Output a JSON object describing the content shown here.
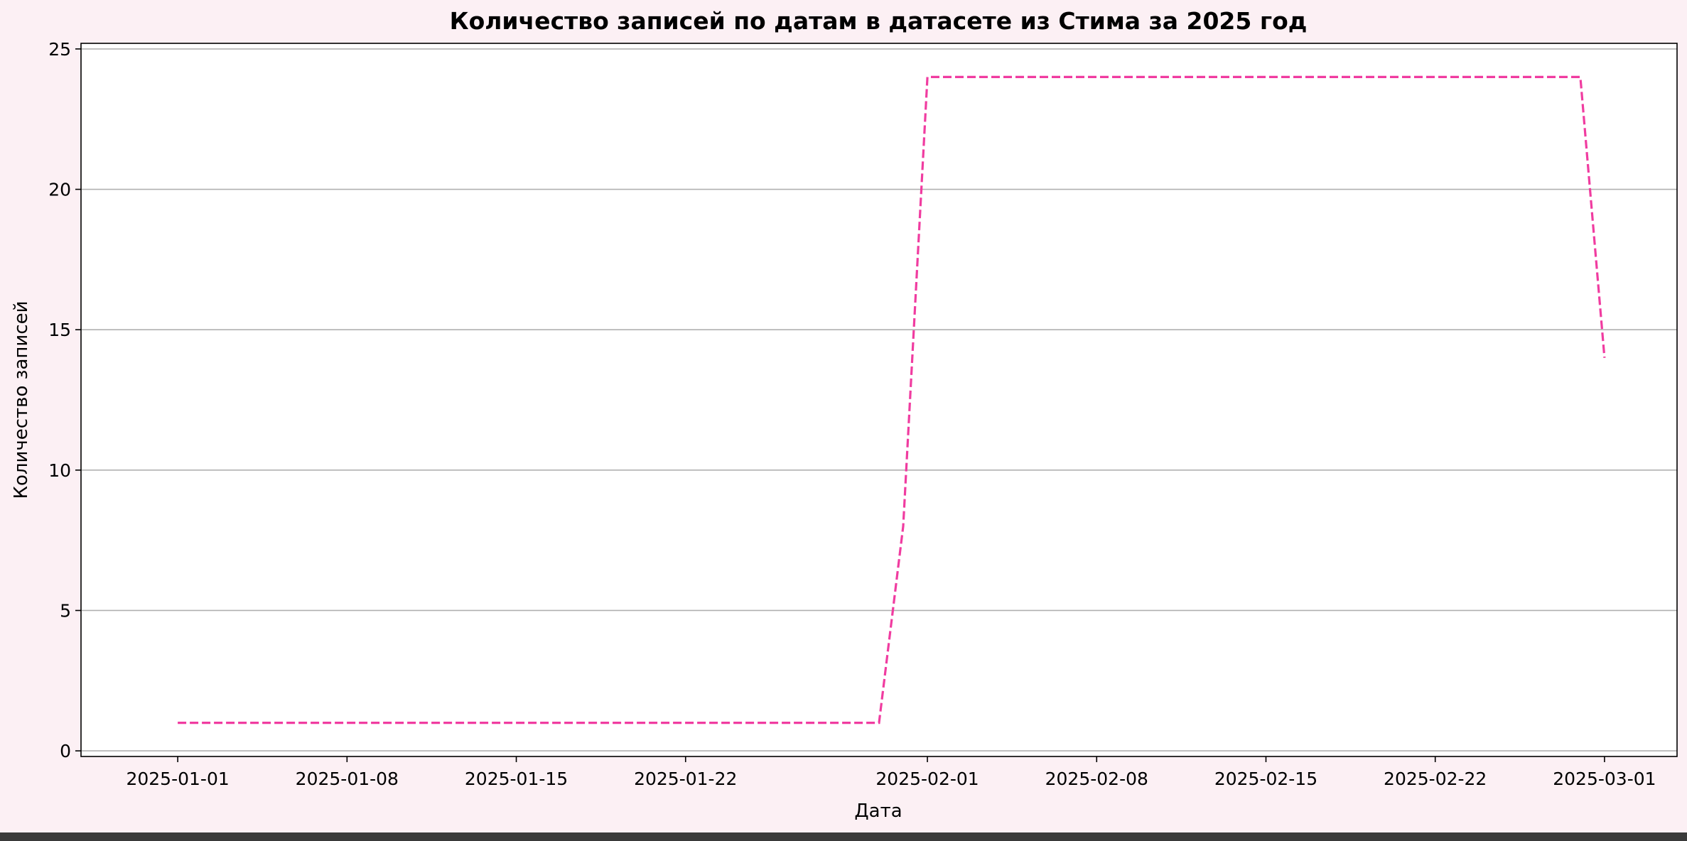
{
  "chart_data": {
    "type": "line",
    "title": "Количество записей по датам в датасете из Стима за 2025 год",
    "xlabel": "Дата",
    "ylabel": "Количество записей",
    "x_tick_labels": [
      "2025-01-01",
      "2025-01-08",
      "2025-01-15",
      "2025-01-22",
      "2025-02-01",
      "2025-02-08",
      "2025-02-15",
      "2025-02-22",
      "2025-03-01"
    ],
    "y_tick_labels": [
      "0",
      "5",
      "10",
      "15",
      "20",
      "25"
    ],
    "y_ticks": [
      0,
      5,
      10,
      15,
      20,
      25
    ],
    "xlim": [
      "2024-12-28",
      "2025-03-04"
    ],
    "ylim": [
      -0.2,
      25.2
    ],
    "grid": "horizontal",
    "line_style": "dashed",
    "color": "#f03ca0",
    "x": [
      "2025-01-01",
      "2025-01-02",
      "2025-01-03",
      "2025-01-04",
      "2025-01-05",
      "2025-01-06",
      "2025-01-07",
      "2025-01-08",
      "2025-01-09",
      "2025-01-10",
      "2025-01-11",
      "2025-01-12",
      "2025-01-13",
      "2025-01-14",
      "2025-01-15",
      "2025-01-16",
      "2025-01-17",
      "2025-01-18",
      "2025-01-19",
      "2025-01-20",
      "2025-01-21",
      "2025-01-22",
      "2025-01-23",
      "2025-01-24",
      "2025-01-25",
      "2025-01-26",
      "2025-01-27",
      "2025-01-28",
      "2025-01-29",
      "2025-01-30",
      "2025-01-31",
      "2025-02-01",
      "2025-02-02",
      "2025-02-03",
      "2025-02-04",
      "2025-02-05",
      "2025-02-06",
      "2025-02-07",
      "2025-02-08",
      "2025-02-09",
      "2025-02-10",
      "2025-02-11",
      "2025-02-12",
      "2025-02-13",
      "2025-02-14",
      "2025-02-15",
      "2025-02-16",
      "2025-02-17",
      "2025-02-18",
      "2025-02-19",
      "2025-02-20",
      "2025-02-21",
      "2025-02-22",
      "2025-02-23",
      "2025-02-24",
      "2025-02-25",
      "2025-02-26",
      "2025-02-27",
      "2025-02-28",
      "2025-03-01"
    ],
    "series": [
      {
        "values": [
          1,
          1,
          1,
          1,
          1,
          1,
          1,
          1,
          1,
          1,
          1,
          1,
          1,
          1,
          1,
          1,
          1,
          1,
          1,
          1,
          1,
          1,
          1,
          1,
          1,
          1,
          1,
          1,
          1,
          1,
          8,
          24,
          24,
          24,
          24,
          24,
          24,
          24,
          24,
          24,
          24,
          24,
          24,
          24,
          24,
          24,
          24,
          24,
          24,
          24,
          24,
          24,
          24,
          24,
          24,
          24,
          24,
          24,
          24,
          14
        ]
      }
    ]
  }
}
